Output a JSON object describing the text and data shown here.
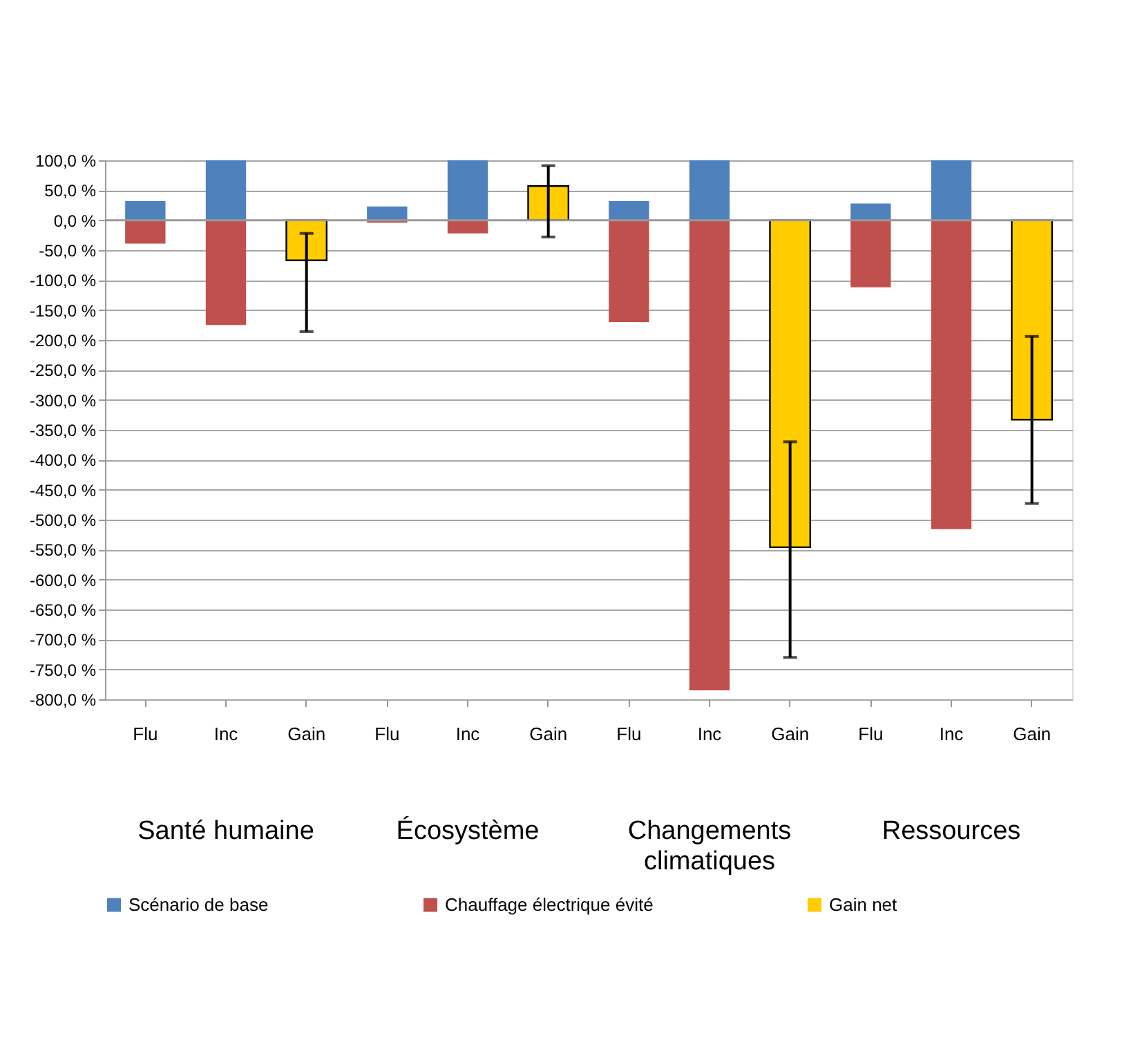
{
  "chart_data": {
    "type": "bar",
    "stacked": true,
    "categories": [
      "Flu",
      "Inc",
      "Gain",
      "Flu",
      "Inc",
      "Gain",
      "Flu",
      "Inc",
      "Gain",
      "Flu",
      "Inc",
      "Gain"
    ],
    "series": [
      {
        "name": "Scénario de base",
        "color": "#4f81bd",
        "values": [
          32,
          100,
          null,
          23,
          100,
          null,
          32,
          100,
          null,
          28,
          100,
          null
        ]
      },
      {
        "name": "Chauffage électrique évité",
        "color": "#c0504d",
        "values": [
          -39,
          -175,
          null,
          -4,
          -22,
          null,
          -170,
          -785,
          null,
          -112,
          -516,
          null
        ]
      },
      {
        "name": "Gain net",
        "color": "#ffcc00",
        "values": [
          null,
          null,
          -67,
          null,
          null,
          57,
          null,
          null,
          -546,
          null,
          null,
          -333
        ],
        "errors": [
          null,
          null,
          [
            -186,
            -22
          ],
          null,
          null,
          [
            -28,
            91
          ],
          null,
          null,
          [
            -730,
            -370
          ],
          null,
          null,
          [
            -473,
            -194
          ]
        ]
      }
    ],
    "ylim": [
      -800,
      100
    ],
    "yticks": [
      {
        "value": 100,
        "label": "100,0 %"
      },
      {
        "value": 50,
        "label": "50,0 %"
      },
      {
        "value": 0,
        "label": "0,0 %"
      },
      {
        "value": -50,
        "label": "-50,0 %"
      },
      {
        "value": -100,
        "label": "-100,0 %"
      },
      {
        "value": -150,
        "label": "-150,0 %"
      },
      {
        "value": -200,
        "label": "-200,0 %"
      },
      {
        "value": -250,
        "label": "-250,0 %"
      },
      {
        "value": -300,
        "label": "-300,0 %"
      },
      {
        "value": -350,
        "label": "-350,0 %"
      },
      {
        "value": -400,
        "label": "-400,0 %"
      },
      {
        "value": -450,
        "label": "-450,0 %"
      },
      {
        "value": -500,
        "label": "-500,0 %"
      },
      {
        "value": -550,
        "label": "-550,0 %"
      },
      {
        "value": -600,
        "label": "-600,0 %"
      },
      {
        "value": -650,
        "label": "-650,0 %"
      },
      {
        "value": -700,
        "label": "-700,0 %"
      },
      {
        "value": -750,
        "label": "-750,0 %"
      },
      {
        "value": -800,
        "label": "-800,0 %"
      }
    ],
    "annotations": [
      "Santé humaine",
      "Écosystème",
      "Changements climatiques",
      "Ressources"
    ],
    "grid": "y",
    "legend": "bottom"
  }
}
